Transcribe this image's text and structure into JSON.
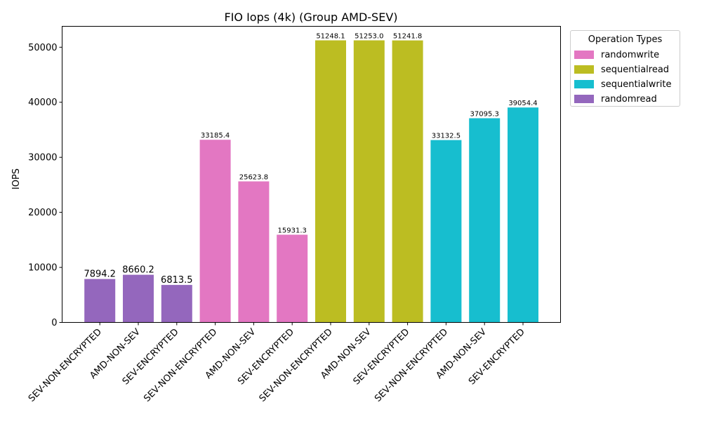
{
  "chart_data": {
    "type": "bar",
    "title": "FIO Iops (4k) (Group AMD-SEV)",
    "xlabel": "",
    "ylabel": "IOPS",
    "ylim": [
      0,
      53800
    ],
    "yticks": [
      0,
      10000,
      20000,
      30000,
      40000,
      50000
    ],
    "grid": false,
    "legend_position": "upper-right-outside",
    "categories": [
      "SEV-NON-ENCRYPTED",
      "AMD-NON-SEV",
      "SEV-ENCRYPTED",
      "SEV-NON-ENCRYPTED",
      "AMD-NON-SEV",
      "SEV-ENCRYPTED",
      "SEV-NON-ENCRYPTED",
      "AMD-NON-SEV",
      "SEV-ENCRYPTED",
      "SEV-NON-ENCRYPTED",
      "AMD-NON-SEV",
      "SEV-ENCRYPTED"
    ],
    "groups": [
      "randomread",
      "randomread",
      "randomread",
      "randomwrite",
      "randomwrite",
      "randomwrite",
      "sequentialread",
      "sequentialread",
      "sequentialread",
      "sequentialwrite",
      "sequentialwrite",
      "sequentialwrite"
    ],
    "values": [
      7894.2,
      8660.2,
      6813.5,
      33185.4,
      25623.8,
      15931.3,
      51248.1,
      51253.0,
      51241.8,
      33132.5,
      37095.3,
      39054.4
    ],
    "value_labels": [
      "7894.2",
      "8660.2",
      "6813.5",
      "33185.4",
      "25623.8",
      "15931.3",
      "51248.1",
      "51253.0",
      "51241.8",
      "33132.5",
      "37095.3",
      "39054.4"
    ],
    "series": [
      {
        "name": "randomread",
        "color": "#9467bd"
      },
      {
        "name": "randomwrite",
        "color": "#e377c2"
      },
      {
        "name": "sequentialread",
        "color": "#bcbd22"
      },
      {
        "name": "sequentialwrite",
        "color": "#17becf"
      }
    ]
  },
  "legend": {
    "title": "Operation Types",
    "items": [
      {
        "label": "randomwrite",
        "color": "#e377c2"
      },
      {
        "label": "sequentialread",
        "color": "#bcbd22"
      },
      {
        "label": "sequentialwrite",
        "color": "#17becf"
      },
      {
        "label": "randomread",
        "color": "#9467bd"
      }
    ]
  }
}
